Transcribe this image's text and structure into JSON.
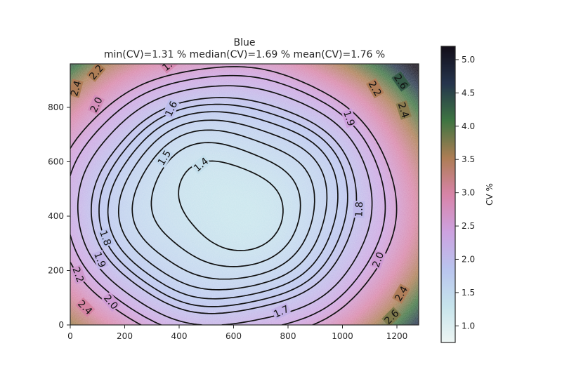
{
  "chart_data": {
    "type": "heatmap",
    "title": "Blue",
    "subtitle": "min(CV)=1.31 %  median(CV)=1.69 %  mean(CV)=1.76 %",
    "x_ticks": [
      "0",
      "200",
      "400",
      "600",
      "800",
      "1000",
      "1200"
    ],
    "y_ticks": [
      "0",
      "200",
      "400",
      "600",
      "800"
    ],
    "x_tick_values": [
      0,
      200,
      400,
      600,
      800,
      1000,
      1200
    ],
    "y_tick_values": [
      0,
      200,
      400,
      600,
      800
    ],
    "xlim": [
      0,
      1280
    ],
    "ylim": [
      0,
      960
    ],
    "colorbar": {
      "label": "CV %",
      "ticks": [
        "1.0",
        "1.5",
        "2.0",
        "2.5",
        "3.0",
        "3.5",
        "4.0",
        "4.5",
        "5.0"
      ],
      "tick_values": [
        1.0,
        1.5,
        2.0,
        2.5,
        3.0,
        3.5,
        4.0,
        4.5,
        5.0
      ],
      "range": [
        0.75,
        5.2
      ],
      "colormap": "cubehelix_r",
      "color_stops": [
        "#eef6f4",
        "#c6e4ec",
        "#b9c4ee",
        "#cda2e0",
        "#d884a8",
        "#ad7d54",
        "#3e7542",
        "#26354d",
        "#120d18"
      ]
    },
    "field": {
      "center": [
        570,
        440
      ],
      "min_cv": 1.31,
      "median_cv": 1.69,
      "mean_cv": 1.76
    },
    "contour_levels": [
      1.4,
      1.5,
      1.6,
      1.7,
      1.8,
      1.9,
      2.0,
      2.2,
      2.4,
      2.6
    ],
    "contour_labels": [
      {
        "text": "1.4",
        "x": 480,
        "y": 590,
        "rot": -40
      },
      {
        "text": "1.5",
        "x": 345,
        "y": 615,
        "rot": -58
      },
      {
        "text": "1.6",
        "x": 370,
        "y": 795,
        "rot": -65
      },
      {
        "text": "1.7",
        "x": 365,
        "y": 960,
        "rot": -40
      },
      {
        "text": "1.7",
        "x": 775,
        "y": 50,
        "rot": -25
      },
      {
        "text": "1.8",
        "x": 1060,
        "y": 425,
        "rot": -88
      },
      {
        "text": "1.8",
        "x": 130,
        "y": 320,
        "rot": 70
      },
      {
        "text": "1.9",
        "x": 1025,
        "y": 760,
        "rot": 70
      },
      {
        "text": "1.9",
        "x": 110,
        "y": 240,
        "rot": 68
      },
      {
        "text": "2.0",
        "x": 95,
        "y": 810,
        "rot": -65
      },
      {
        "text": "2.0",
        "x": 1130,
        "y": 240,
        "rot": -70
      },
      {
        "text": "2.0",
        "x": 150,
        "y": 85,
        "rot": 50
      },
      {
        "text": "2.2",
        "x": 1120,
        "y": 870,
        "rot": 60
      },
      {
        "text": "2.2",
        "x": 95,
        "y": 930,
        "rot": -50
      },
      {
        "text": "2.2",
        "x": 30,
        "y": 185,
        "rot": 70
      },
      {
        "text": "2.4",
        "x": 20,
        "y": 870,
        "rot": -75
      },
      {
        "text": "2.4",
        "x": 1225,
        "y": 790,
        "rot": 72
      },
      {
        "text": "2.4",
        "x": 1215,
        "y": 115,
        "rot": -60
      },
      {
        "text": "2.4",
        "x": 55,
        "y": 65,
        "rot": 45
      },
      {
        "text": "2.6",
        "x": 1215,
        "y": 895,
        "rot": 55
      },
      {
        "text": "2.6",
        "x": 1180,
        "y": 30,
        "rot": -45
      }
    ]
  }
}
